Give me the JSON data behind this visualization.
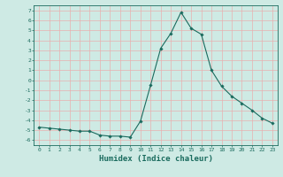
{
  "x": [
    0,
    1,
    2,
    3,
    4,
    5,
    6,
    7,
    8,
    9,
    10,
    11,
    12,
    13,
    14,
    15,
    16,
    17,
    18,
    19,
    20,
    21,
    22,
    23
  ],
  "y": [
    -4.7,
    -4.8,
    -4.9,
    -5.0,
    -5.1,
    -5.1,
    -5.5,
    -5.6,
    -5.6,
    -5.7,
    -4.1,
    -0.5,
    3.2,
    4.7,
    6.8,
    5.2,
    4.6,
    1.0,
    -0.6,
    -1.6,
    -2.3,
    -3.0,
    -3.8,
    -4.3
  ],
  "line_color": "#1a6b5e",
  "marker": "D",
  "marker_size": 1.8,
  "bg_color": "#ceeae4",
  "grid_color": "#e8b0b0",
  "tick_color": "#1a6b5e",
  "xlabel": "Humidex (Indice chaleur)",
  "xlabel_fontsize": 6.5,
  "xlabel_color": "#1a6b5e",
  "ylabel_ticks": [
    7,
    6,
    5,
    4,
    3,
    2,
    1,
    0,
    -1,
    -2,
    -3,
    -4,
    -5,
    -6
  ],
  "xlim": [
    -0.5,
    23.5
  ],
  "ylim": [
    -6.5,
    7.5
  ]
}
